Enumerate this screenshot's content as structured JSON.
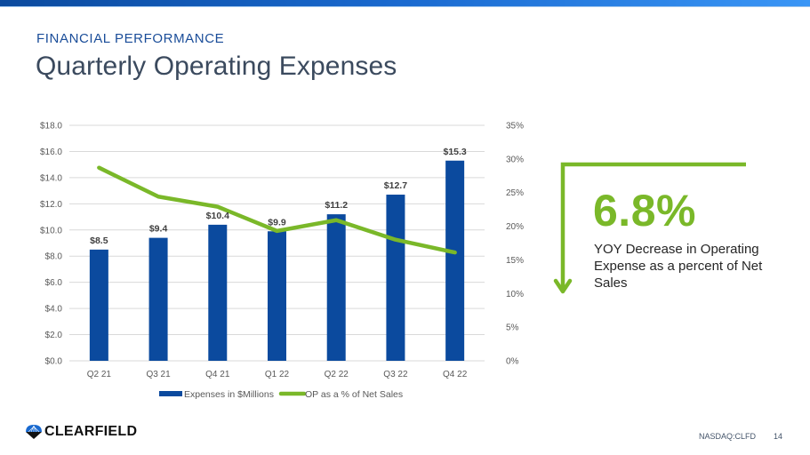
{
  "header": {
    "eyebrow": "FINANCIAL PERFORMANCE",
    "title": "Quarterly Operating Expenses"
  },
  "callout": {
    "value": "6.8%",
    "description": "YOY Decrease in Operating Expense as a percent of Net Sales",
    "icon": "down-arrow-icon",
    "color": "#7ab829"
  },
  "footer": {
    "logo_text": "CLEARFIELD",
    "ticker": "NASDAQ:CLFD",
    "page_number": "14"
  },
  "colors": {
    "bar": "#0b4a9e",
    "line": "#7ab829",
    "title": "#3b4a5e",
    "eyebrow": "#1a4d99"
  },
  "chart_data": {
    "type": "bar",
    "title": "",
    "xlabel": "",
    "ylabel": "",
    "categories": [
      "Q2 21",
      "Q3 21",
      "Q4 21",
      "Q1 22",
      "Q2 22",
      "Q3 22",
      "Q4 22"
    ],
    "series": [
      {
        "name": "Expenses in $Millions",
        "type": "bar",
        "axis": "left",
        "values": [
          8.5,
          9.4,
          10.4,
          9.9,
          11.2,
          12.7,
          15.3
        ],
        "labels": [
          "$8.5",
          "$9.4",
          "$10.4",
          "$9.9",
          "$11.2",
          "$12.7",
          "$15.3"
        ]
      },
      {
        "name": "OP as a % of Net Sales",
        "type": "line",
        "axis": "right",
        "values": [
          28.7,
          24.4,
          22.9,
          19.3,
          20.9,
          18.0,
          16.1
        ]
      }
    ],
    "ylim": [
      0,
      18
    ],
    "y_ticks": [
      "$0.0",
      "$2.0",
      "$4.0",
      "$6.0",
      "$8.0",
      "$10.0",
      "$12.0",
      "$14.0",
      "$16.0",
      "$18.0"
    ],
    "y2lim": [
      0,
      35
    ],
    "y2_ticks": [
      "0%",
      "5%",
      "10%",
      "15%",
      "20%",
      "25%",
      "30%",
      "35%"
    ],
    "grid": true,
    "legend": "bottom"
  }
}
